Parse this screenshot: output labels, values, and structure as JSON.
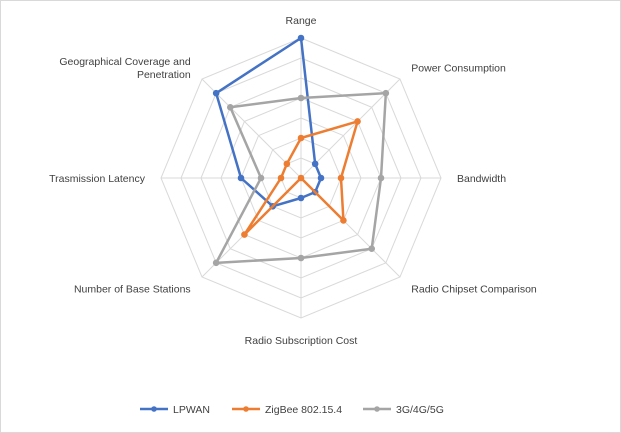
{
  "chart_data": {
    "type": "radar",
    "title": "",
    "axes": [
      [
        "Range"
      ],
      [
        "Power Consumption"
      ],
      [
        "Bandwidth"
      ],
      [
        "Radio Chipset Comparison"
      ],
      [
        "Radio Subscription Cost"
      ],
      [
        "Number of Base Stations"
      ],
      [
        "Trasmission Latency"
      ],
      [
        "Geographical Coverage and",
        "Penetration"
      ]
    ],
    "rlim": [
      0,
      7
    ],
    "grid_rings": 7,
    "legend_position": "bottom",
    "series": [
      {
        "name": "LPWAN",
        "color": "#4472c4",
        "values": [
          7,
          1,
          1,
          1,
          1,
          2,
          3,
          6
        ]
      },
      {
        "name": "ZigBee 802.15.4",
        "color": "#ed7d31",
        "values": [
          2,
          4,
          2,
          3,
          0,
          4,
          1,
          1
        ]
      },
      {
        "name": "3G/4G/5G",
        "color": "#a5a5a5",
        "values": [
          4,
          6,
          4,
          5,
          4,
          6,
          2,
          5
        ]
      }
    ]
  }
}
